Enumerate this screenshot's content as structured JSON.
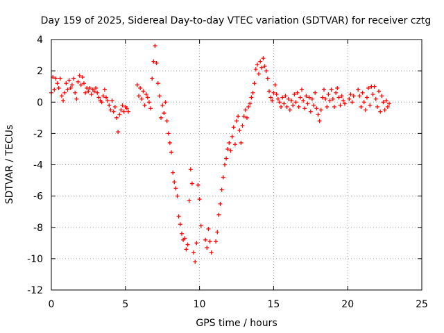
{
  "chart_data": {
    "type": "scatter",
    "title": "Day 159 of 2025, Sidereal Day-to-day VTEC variation (SDTVAR) for receiver cztg",
    "xlabel": "GPS time / hours",
    "ylabel": "SDTVAR / TECUs",
    "xlim": [
      0,
      25
    ],
    "ylim": [
      -12,
      4
    ],
    "xticks": [
      0,
      5,
      10,
      15,
      20,
      25
    ],
    "yticks": [
      -12,
      -10,
      -8,
      -6,
      -4,
      -2,
      0,
      2,
      4
    ],
    "grid": true,
    "marker": "+",
    "color": "#ff0000",
    "series": [
      {
        "name": "SDTVAR",
        "points": [
          [
            0.0,
            0.6
          ],
          [
            0.1,
            1.6
          ],
          [
            0.2,
            0.8
          ],
          [
            0.3,
            1.5
          ],
          [
            0.4,
            1.2
          ],
          [
            0.5,
            0.9
          ],
          [
            0.6,
            1.5
          ],
          [
            0.7,
            0.4
          ],
          [
            0.8,
            0.1
          ],
          [
            0.9,
            0.6
          ],
          [
            1.0,
            1.2
          ],
          [
            1.1,
            0.8
          ],
          [
            1.2,
            1.4
          ],
          [
            1.3,
            0.9
          ],
          [
            1.4,
            1.1
          ],
          [
            1.5,
            1.5
          ],
          [
            1.6,
            0.6
          ],
          [
            1.7,
            0.2
          ],
          [
            1.8,
            1.3
          ],
          [
            1.9,
            1.7
          ],
          [
            2.0,
            1.1
          ],
          [
            2.1,
            1.6
          ],
          [
            2.2,
            1.2
          ],
          [
            2.3,
            0.6
          ],
          [
            2.4,
            0.9
          ],
          [
            2.5,
            0.7
          ],
          [
            2.6,
            0.9
          ],
          [
            2.7,
            0.5
          ],
          [
            2.8,
            0.8
          ],
          [
            2.9,
            0.7
          ],
          [
            3.0,
            0.9
          ],
          [
            3.1,
            0.6
          ],
          [
            3.2,
            0.3
          ],
          [
            3.3,
            0.1
          ],
          [
            3.4,
            0.0
          ],
          [
            3.5,
            0.4
          ],
          [
            3.6,
            0.8
          ],
          [
            3.7,
            0.3
          ],
          [
            3.8,
            0.1
          ],
          [
            3.9,
            -0.2
          ],
          [
            4.0,
            -0.5
          ],
          [
            4.1,
            0.1
          ],
          [
            4.2,
            -0.6
          ],
          [
            4.3,
            -0.3
          ],
          [
            4.4,
            -1.0
          ],
          [
            4.5,
            -1.9
          ],
          [
            4.6,
            -0.8
          ],
          [
            4.7,
            -0.5
          ],
          [
            4.8,
            -0.2
          ],
          [
            4.9,
            -0.6
          ],
          [
            5.0,
            -0.3
          ],
          [
            5.1,
            -0.4
          ],
          [
            5.2,
            -0.6
          ],
          [
            5.8,
            1.1
          ],
          [
            5.9,
            0.4
          ],
          [
            6.0,
            0.9
          ],
          [
            6.1,
            0.2
          ],
          [
            6.2,
            0.7
          ],
          [
            6.3,
            -0.2
          ],
          [
            6.4,
            0.5
          ],
          [
            6.5,
            0.3
          ],
          [
            6.6,
            0.0
          ],
          [
            6.7,
            -0.4
          ],
          [
            6.8,
            1.5
          ],
          [
            6.9,
            2.6
          ],
          [
            7.0,
            3.6
          ],
          [
            7.1,
            2.5
          ],
          [
            7.2,
            1.2
          ],
          [
            7.3,
            0.4
          ],
          [
            7.4,
            -1.0
          ],
          [
            7.5,
            -0.2
          ],
          [
            7.6,
            -0.7
          ],
          [
            7.7,
            0.0
          ],
          [
            7.8,
            -1.2
          ],
          [
            7.9,
            -2.0
          ],
          [
            8.0,
            -2.6
          ],
          [
            8.1,
            -3.2
          ],
          [
            8.2,
            -4.5
          ],
          [
            8.3,
            -5.1
          ],
          [
            8.4,
            -5.5
          ],
          [
            8.5,
            -6.0
          ],
          [
            8.6,
            -7.3
          ],
          [
            8.7,
            -7.8
          ],
          [
            8.8,
            -8.4
          ],
          [
            8.9,
            -8.8
          ],
          [
            9.0,
            -8.7
          ],
          [
            9.1,
            -9.4
          ],
          [
            9.2,
            -9.1
          ],
          [
            9.3,
            -6.3
          ],
          [
            9.4,
            -4.3
          ],
          [
            9.5,
            -5.2
          ],
          [
            9.6,
            -9.6
          ],
          [
            9.7,
            -10.2
          ],
          [
            9.8,
            -9.0
          ],
          [
            9.9,
            -5.3
          ],
          [
            10.0,
            -6.2
          ],
          [
            10.1,
            -7.9
          ],
          [
            10.4,
            -8.8
          ],
          [
            10.5,
            -9.3
          ],
          [
            10.6,
            -8.1
          ],
          [
            10.7,
            -8.9
          ],
          [
            10.8,
            -9.6
          ],
          [
            11.1,
            -8.9
          ],
          [
            11.2,
            -8.3
          ],
          [
            11.3,
            -7.2
          ],
          [
            11.4,
            -6.5
          ],
          [
            11.5,
            -5.6
          ],
          [
            11.6,
            -4.8
          ],
          [
            11.7,
            -4.0
          ],
          [
            11.8,
            -3.6
          ],
          [
            11.9,
            -3.0
          ],
          [
            12.0,
            -2.6
          ],
          [
            12.1,
            -3.1
          ],
          [
            12.2,
            -2.2
          ],
          [
            12.3,
            -1.6
          ],
          [
            12.4,
            -2.7
          ],
          [
            12.5,
            -1.2
          ],
          [
            12.6,
            -0.9
          ],
          [
            12.7,
            -1.8
          ],
          [
            12.8,
            -2.6
          ],
          [
            12.9,
            -1.5
          ],
          [
            13.0,
            -0.9
          ],
          [
            13.1,
            -0.5
          ],
          [
            13.2,
            -1.0
          ],
          [
            13.3,
            -0.3
          ],
          [
            13.4,
            -0.1
          ],
          [
            13.5,
            0.3
          ],
          [
            13.6,
            0.6
          ],
          [
            13.7,
            1.2
          ],
          [
            13.8,
            2.1
          ],
          [
            13.9,
            2.4
          ],
          [
            14.0,
            1.8
          ],
          [
            14.1,
            2.6
          ],
          [
            14.2,
            2.2
          ],
          [
            14.3,
            2.8
          ],
          [
            14.4,
            2.3
          ],
          [
            14.5,
            2.0
          ],
          [
            14.6,
            1.5
          ],
          [
            14.7,
            0.7
          ],
          [
            14.8,
            0.3
          ],
          [
            14.9,
            0.1
          ],
          [
            15.0,
            0.6
          ],
          [
            15.1,
            1.1
          ],
          [
            15.2,
            0.5
          ],
          [
            15.3,
            0.2
          ],
          [
            15.4,
            0.0
          ],
          [
            15.5,
            -0.3
          ],
          [
            15.6,
            0.3
          ],
          [
            15.7,
            -0.1
          ],
          [
            15.8,
            0.4
          ],
          [
            15.9,
            -0.3
          ],
          [
            16.0,
            0.2
          ],
          [
            16.1,
            -0.5
          ],
          [
            16.2,
            0.1
          ],
          [
            16.3,
            -0.2
          ],
          [
            16.4,
            0.5
          ],
          [
            16.5,
            0.0
          ],
          [
            16.6,
            0.6
          ],
          [
            16.7,
            -0.3
          ],
          [
            16.8,
            0.3
          ],
          [
            16.9,
            0.8
          ],
          [
            17.0,
            0.1
          ],
          [
            17.1,
            -0.4
          ],
          [
            17.2,
            0.4
          ],
          [
            17.3,
            -0.1
          ],
          [
            17.4,
            0.3
          ],
          [
            17.5,
            -0.6
          ],
          [
            17.6,
            0.2
          ],
          [
            17.7,
            -0.2
          ],
          [
            17.8,
            0.6
          ],
          [
            17.9,
            -0.4
          ],
          [
            18.0,
            -0.8
          ],
          [
            18.1,
            -1.2
          ],
          [
            18.2,
            -0.5
          ],
          [
            18.3,
            0.3
          ],
          [
            18.4,
            0.8
          ],
          [
            18.5,
            0.2
          ],
          [
            18.6,
            -0.3
          ],
          [
            18.7,
            0.5
          ],
          [
            18.8,
            0.1
          ],
          [
            18.9,
            0.8
          ],
          [
            19.0,
            0.2
          ],
          [
            19.1,
            -0.3
          ],
          [
            19.2,
            0.6
          ],
          [
            19.3,
            0.9
          ],
          [
            19.4,
            0.3
          ],
          [
            19.5,
            -0.2
          ],
          [
            19.6,
            0.4
          ],
          [
            19.7,
            0.1
          ],
          [
            19.8,
            -0.1
          ],
          [
            20.1,
            0.2
          ],
          [
            20.2,
            0.5
          ],
          [
            20.3,
            0.0
          ],
          [
            20.4,
            0.4
          ],
          [
            20.7,
            0.8
          ],
          [
            20.8,
            0.4
          ],
          [
            20.9,
            -0.3
          ],
          [
            21.0,
            0.6
          ],
          [
            21.1,
            0.0
          ],
          [
            21.2,
            -0.5
          ],
          [
            21.3,
            0.3
          ],
          [
            21.4,
            0.9
          ],
          [
            21.5,
            -0.2
          ],
          [
            21.6,
            1.0
          ],
          [
            21.7,
            0.5
          ],
          [
            21.8,
            1.0
          ],
          [
            21.9,
            0.2
          ],
          [
            22.0,
            -0.3
          ],
          [
            22.1,
            0.7
          ],
          [
            22.2,
            -0.6
          ],
          [
            22.3,
            0.4
          ],
          [
            22.4,
            0.0
          ],
          [
            22.5,
            -0.5
          ],
          [
            22.6,
            0.1
          ],
          [
            22.7,
            -0.3
          ],
          [
            22.8,
            -0.1
          ]
        ]
      }
    ]
  }
}
